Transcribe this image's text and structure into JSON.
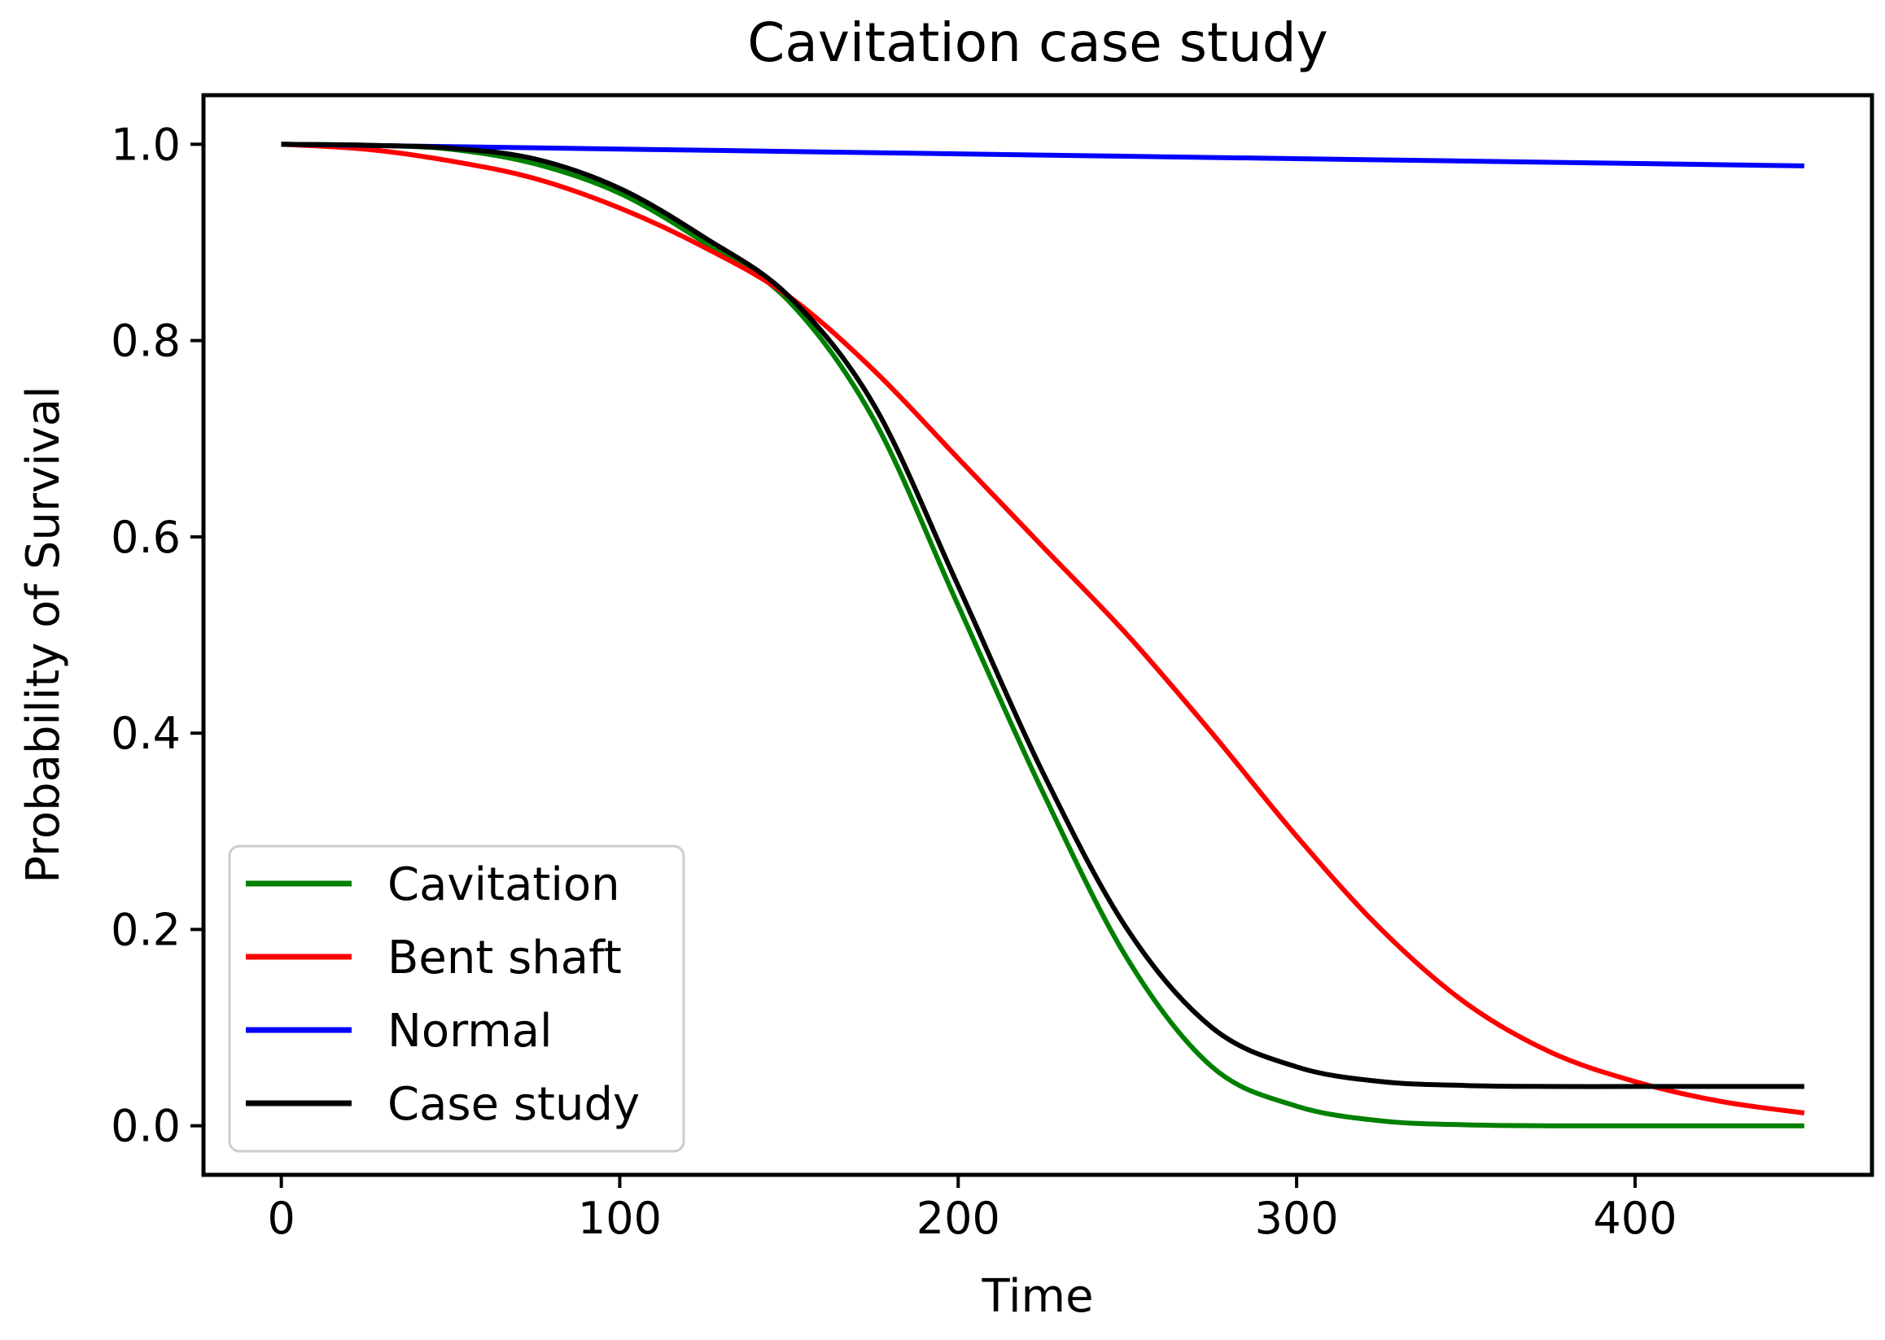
{
  "chart_data": {
    "type": "line",
    "title": "Cavitation case study",
    "xlabel": "Time",
    "ylabel": "Probability of Survival",
    "xlim": [
      -23,
      470
    ],
    "ylim": [
      -0.05,
      1.05
    ],
    "xticks": [
      0,
      100,
      200,
      300,
      400
    ],
    "yticks": [
      0.0,
      0.2,
      0.4,
      0.6,
      0.8,
      1.0
    ],
    "xtick_labels": [
      "0",
      "100",
      "200",
      "300",
      "400"
    ],
    "ytick_labels": [
      "0.0",
      "0.2",
      "0.4",
      "0.6",
      "0.8",
      "1.0"
    ],
    "grid": false,
    "legend_position": "lower-left",
    "series": [
      {
        "name": "Cavitation",
        "color": "#008000",
        "x": [
          0,
          25,
          50,
          75,
          100,
          125,
          150,
          175,
          200,
          225,
          250,
          275,
          300,
          325,
          350,
          375,
          400,
          425,
          450
        ],
        "y": [
          1.0,
          0.999,
          0.995,
          0.98,
          0.95,
          0.9,
          0.84,
          0.72,
          0.53,
          0.34,
          0.17,
          0.06,
          0.02,
          0.005,
          0.001,
          0.0,
          0.0,
          0.0,
          0.0
        ]
      },
      {
        "name": "Bent shaft",
        "color": "#ff0000",
        "x": [
          0,
          25,
          50,
          75,
          100,
          125,
          150,
          175,
          200,
          225,
          250,
          275,
          300,
          325,
          350,
          375,
          400,
          425,
          450
        ],
        "y": [
          1.0,
          0.995,
          0.983,
          0.965,
          0.935,
          0.895,
          0.845,
          0.77,
          0.68,
          0.59,
          0.5,
          0.4,
          0.295,
          0.2,
          0.125,
          0.075,
          0.045,
          0.025,
          0.013
        ]
      },
      {
        "name": "Normal",
        "color": "#0000ff",
        "x": [
          0,
          450
        ],
        "y": [
          1.0,
          0.978
        ]
      },
      {
        "name": "Case study",
        "color": "#000000",
        "x": [
          0,
          25,
          50,
          75,
          100,
          125,
          150,
          175,
          200,
          225,
          250,
          275,
          300,
          325,
          350,
          375,
          400,
          425,
          450
        ],
        "y": [
          1.0,
          0.999,
          0.996,
          0.985,
          0.955,
          0.905,
          0.845,
          0.735,
          0.55,
          0.36,
          0.2,
          0.1,
          0.06,
          0.045,
          0.041,
          0.04,
          0.04,
          0.04,
          0.04
        ]
      }
    ]
  }
}
